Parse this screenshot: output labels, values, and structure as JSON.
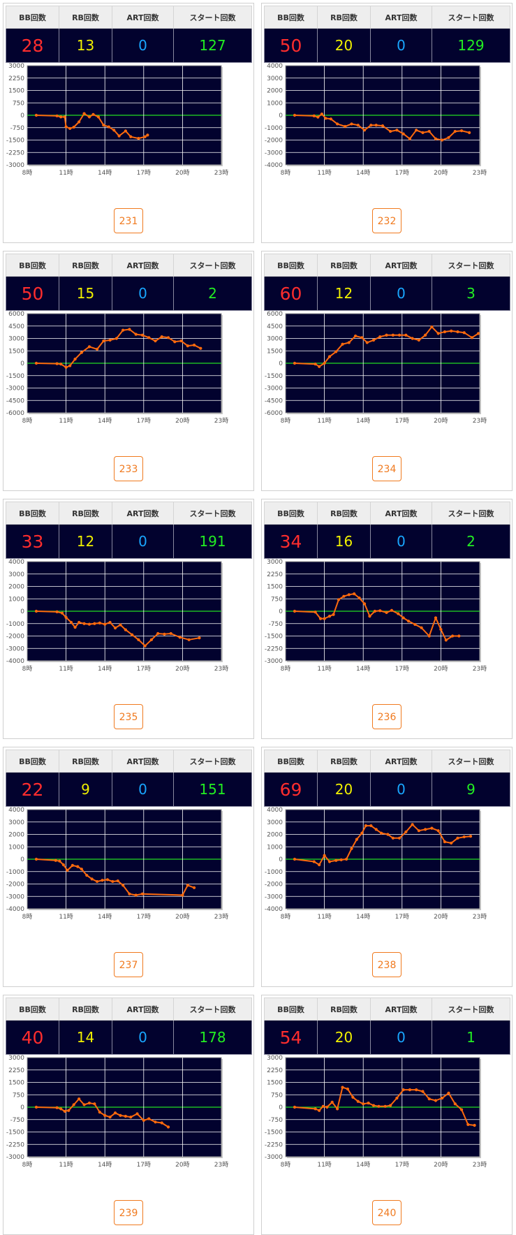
{
  "headers": {
    "bb": "BB回数",
    "rb": "RB回数",
    "art": "ART回数",
    "start": "スタート回数"
  },
  "colors": {
    "plot_bg": "#02022e",
    "line": "#ff6a0d",
    "zero_line": "#22dd22",
    "grid": "#ffffff",
    "bb": "#ff2d2d",
    "rb": "#f0f000",
    "art": "#19a6ff",
    "start": "#22ee22",
    "button": "#f07a1f"
  },
  "machines": [
    {
      "bb": "28",
      "rb": "13",
      "art": "0",
      "start": "127",
      "number": "231",
      "chart_data": {
        "type": "line",
        "xlim": [
          8,
          23
        ],
        "x_ticks": [
          "8時",
          "11時",
          "14時",
          "17時",
          "20時",
          "23時"
        ],
        "ylim": [
          -3000,
          3000
        ],
        "y_ticks": [
          "3000",
          "2250",
          "1500",
          "750",
          "0",
          "-750",
          "-1500",
          "-2250",
          "-3000"
        ],
        "series": [
          {
            "x": [
              8.7,
              10.3,
              10.6,
              10.9,
              11.0,
              11.3,
              11.6,
              12.0,
              12.4,
              12.8,
              13.1,
              13.5,
              13.9,
              14.3,
              14.7,
              15.1,
              15.6,
              16.0,
              16.6,
              17.1,
              17.3
            ],
            "y": [
              0,
              -40,
              -100,
              -100,
              -700,
              -800,
              -720,
              -400,
              100,
              -100,
              50,
              -100,
              -600,
              -700,
              -900,
              -1250,
              -950,
              -1300,
              -1400,
              -1300,
              -1200
            ]
          }
        ]
      }
    },
    {
      "bb": "50",
      "rb": "20",
      "art": "0",
      "start": "129",
      "number": "232",
      "chart_data": {
        "type": "line",
        "xlim": [
          8,
          23
        ],
        "x_ticks": [
          "8時",
          "11時",
          "14時",
          "17時",
          "20時",
          "23時"
        ],
        "ylim": [
          -4000,
          4000
        ],
        "y_ticks": [
          "4000",
          "3000",
          "2000",
          "1000",
          "0",
          "-1000",
          "-2000",
          "-3000",
          "-4000"
        ],
        "series": [
          {
            "x": [
              8.7,
              10.2,
              10.5,
              10.8,
              11.1,
              11.5,
              12.0,
              12.6,
              13.1,
              13.6,
              14.1,
              14.6,
              15.0,
              15.5,
              16.1,
              16.6,
              17.1,
              17.6,
              18.1,
              18.6,
              19.1,
              19.6,
              20.1,
              20.6,
              21.1,
              21.6,
              22.2
            ],
            "y": [
              0,
              -50,
              -150,
              100,
              -250,
              -300,
              -700,
              -900,
              -700,
              -800,
              -1200,
              -800,
              -800,
              -850,
              -1300,
              -1200,
              -1500,
              -1900,
              -1200,
              -1400,
              -1300,
              -1900,
              -2000,
              -1800,
              -1300,
              -1250,
              -1400
            ]
          }
        ]
      }
    },
    {
      "bb": "50",
      "rb": "15",
      "art": "0",
      "start": "2",
      "number": "233",
      "chart_data": {
        "type": "line",
        "xlim": [
          8,
          23
        ],
        "x_ticks": [
          "8時",
          "11時",
          "14時",
          "17時",
          "20時",
          "23時"
        ],
        "ylim": [
          -6000,
          6000
        ],
        "y_ticks": [
          "6000",
          "4500",
          "3000",
          "1500",
          "0",
          "-1500",
          "-3000",
          "-4500",
          "-6000"
        ],
        "series": [
          {
            "x": [
              8.7,
              10.3,
              10.6,
              11.0,
              11.3,
              11.7,
              12.2,
              12.8,
              13.4,
              13.9,
              14.4,
              14.9,
              15.4,
              15.9,
              16.4,
              16.9,
              17.4,
              17.9,
              18.4,
              18.9,
              19.4,
              19.9,
              20.4,
              20.9,
              21.4
            ],
            "y": [
              0,
              -50,
              -100,
              -500,
              -300,
              500,
              1300,
              2000,
              1700,
              2700,
              2800,
              3000,
              4000,
              4100,
              3500,
              3400,
              3100,
              2700,
              3200,
              3100,
              2600,
              2700,
              2100,
              2200,
              1800
            ]
          }
        ]
      }
    },
    {
      "bb": "60",
      "rb": "12",
      "art": "0",
      "start": "3",
      "number": "234",
      "chart_data": {
        "type": "line",
        "xlim": [
          8,
          23
        ],
        "x_ticks": [
          "8時",
          "11時",
          "14時",
          "17時",
          "20時",
          "23時"
        ],
        "ylim": [
          -6000,
          6000
        ],
        "y_ticks": [
          "6000",
          "4500",
          "3000",
          "1500",
          "0",
          "-1500",
          "-3000",
          "-4500",
          "-6000"
        ],
        "series": [
          {
            "x": [
              8.7,
              10.3,
              10.6,
              11.0,
              11.4,
              11.9,
              12.4,
              12.9,
              13.4,
              13.9,
              14.3,
              14.8,
              15.3,
              15.8,
              16.3,
              16.8,
              17.3,
              17.8,
              18.3,
              18.8,
              19.3,
              19.8,
              20.3,
              20.8,
              21.3,
              21.8,
              22.4,
              22.9
            ],
            "y": [
              0,
              -100,
              -400,
              0,
              800,
              1400,
              2300,
              2500,
              3300,
              3100,
              2500,
              2800,
              3200,
              3400,
              3400,
              3400,
              3400,
              3000,
              2800,
              3400,
              4400,
              3600,
              3800,
              3900,
              3800,
              3700,
              3100,
              3600
            ]
          }
        ]
      }
    },
    {
      "bb": "33",
      "rb": "12",
      "art": "0",
      "start": "191",
      "number": "235",
      "chart_data": {
        "type": "line",
        "xlim": [
          8,
          23
        ],
        "x_ticks": [
          "8時",
          "11時",
          "14時",
          "17時",
          "20時",
          "23時"
        ],
        "ylim": [
          -4000,
          4000
        ],
        "y_ticks": [
          "4000",
          "3000",
          "2000",
          "1000",
          "0",
          "-1000",
          "-2000",
          "-3000",
          "-4000"
        ],
        "series": [
          {
            "x": [
              8.7,
              10.3,
              10.7,
              11.0,
              11.4,
              11.7,
              12.0,
              12.4,
              12.8,
              13.2,
              13.6,
              14.0,
              14.4,
              14.8,
              15.2,
              15.6,
              16.1,
              16.6,
              17.1,
              17.6,
              18.1,
              18.6,
              19.1,
              19.8,
              20.5,
              21.3
            ],
            "y": [
              0,
              -50,
              -150,
              -500,
              -900,
              -1300,
              -900,
              -1000,
              -1050,
              -1000,
              -950,
              -1050,
              -900,
              -1350,
              -1100,
              -1500,
              -1900,
              -2300,
              -2800,
              -2300,
              -1800,
              -1850,
              -1800,
              -2100,
              -2300,
              -2150
            ]
          }
        ]
      }
    },
    {
      "bb": "34",
      "rb": "16",
      "art": "0",
      "start": "2",
      "number": "236",
      "chart_data": {
        "type": "line",
        "xlim": [
          8,
          23
        ],
        "x_ticks": [
          "8時",
          "11時",
          "14時",
          "17時",
          "20時",
          "23時"
        ],
        "ylim": [
          -3000,
          3000
        ],
        "y_ticks": [
          "3000",
          "2250",
          "1500",
          "750",
          "0",
          "-750",
          "-1500",
          "-2250",
          "-3000"
        ],
        "series": [
          {
            "x": [
              8.7,
              10.3,
              10.7,
              11.0,
              11.4,
              11.7,
              12.1,
              12.5,
              12.9,
              13.3,
              13.7,
              14.1,
              14.5,
              14.9,
              15.3,
              15.8,
              16.2,
              16.7,
              17.1,
              17.5,
              18.0,
              18.5,
              19.1,
              19.6,
              20.0,
              20.4,
              20.9,
              21.4
            ],
            "y": [
              0,
              -50,
              -450,
              -450,
              -300,
              -200,
              700,
              900,
              1000,
              1050,
              800,
              450,
              -300,
              0,
              30,
              -80,
              50,
              -150,
              -400,
              -600,
              -800,
              -1000,
              -1500,
              -400,
              -1100,
              -1750,
              -1500,
              -1500
            ]
          }
        ]
      }
    },
    {
      "bb": "22",
      "rb": "9",
      "art": "0",
      "start": "151",
      "number": "237",
      "chart_data": {
        "type": "line",
        "xlim": [
          8,
          23
        ],
        "x_ticks": [
          "8時",
          "11時",
          "14時",
          "17時",
          "20時",
          "23時"
        ],
        "ylim": [
          -4000,
          4000
        ],
        "y_ticks": [
          "4000",
          "3000",
          "2000",
          "1000",
          "0",
          "-1000",
          "-2000",
          "-3000",
          "-4000"
        ],
        "series": [
          {
            "x": [
              8.7,
              10.2,
              10.5,
              10.8,
              11.1,
              11.5,
              11.9,
              12.2,
              12.6,
              13.0,
              13.4,
              13.8,
              14.2,
              14.6,
              15.0,
              15.4,
              15.9,
              16.4,
              16.9,
              20.0,
              20.4,
              20.9
            ],
            "y": [
              0,
              -100,
              -150,
              -450,
              -900,
              -500,
              -600,
              -800,
              -1300,
              -1600,
              -1800,
              -1700,
              -1650,
              -1800,
              -1750,
              -2100,
              -2800,
              -2900,
              -2800,
              -2900,
              -2100,
              -2300
            ]
          }
        ]
      }
    },
    {
      "bb": "69",
      "rb": "20",
      "art": "0",
      "start": "9",
      "number": "238",
      "chart_data": {
        "type": "line",
        "xlim": [
          8,
          23
        ],
        "x_ticks": [
          "8時",
          "11時",
          "14時",
          "17時",
          "20時",
          "23時"
        ],
        "ylim": [
          -4000,
          4000
        ],
        "y_ticks": [
          "4000",
          "3000",
          "2000",
          "1000",
          "0",
          "-1000",
          "-2000",
          "-3000",
          "-4000"
        ],
        "series": [
          {
            "x": [
              8.7,
              10.2,
              10.6,
              11.0,
              11.4,
              11.9,
              12.3,
              12.7,
              13.1,
              13.5,
              13.9,
              14.2,
              14.6,
              15.0,
              15.4,
              15.9,
              16.3,
              16.8,
              17.3,
              17.8,
              18.3,
              18.8,
              19.3,
              19.8,
              20.3,
              20.8,
              21.3,
              21.8,
              22.3
            ],
            "y": [
              0,
              -200,
              -450,
              300,
              -200,
              -100,
              -50,
              0,
              850,
              1600,
              2100,
              2700,
              2700,
              2400,
              2100,
              2000,
              1700,
              1700,
              2200,
              2800,
              2300,
              2400,
              2500,
              2300,
              1400,
              1300,
              1700,
              1800,
              1850
            ]
          }
        ]
      }
    },
    {
      "bb": "40",
      "rb": "14",
      "art": "0",
      "start": "178",
      "number": "239",
      "chart_data": {
        "type": "line",
        "xlim": [
          8,
          23
        ],
        "x_ticks": [
          "8時",
          "11時",
          "14時",
          "17時",
          "20時",
          "23時"
        ],
        "ylim": [
          -3000,
          3000
        ],
        "y_ticks": [
          "3000",
          "2250",
          "1500",
          "750",
          "0",
          "-750",
          "-1500",
          "-2250",
          "-3000"
        ],
        "series": [
          {
            "x": [
              8.7,
              10.3,
              10.6,
              10.9,
              11.2,
              11.6,
              12.0,
              12.4,
              12.8,
              13.2,
              13.6,
              14.0,
              14.4,
              14.8,
              15.2,
              15.6,
              16.0,
              16.5,
              17.0,
              17.4,
              17.9,
              18.4,
              18.9
            ],
            "y": [
              0,
              -30,
              -100,
              -250,
              -200,
              150,
              500,
              150,
              250,
              200,
              -300,
              -500,
              -600,
              -350,
              -500,
              -550,
              -600,
              -400,
              -800,
              -700,
              -900,
              -950,
              -1200
            ]
          }
        ]
      }
    },
    {
      "bb": "54",
      "rb": "20",
      "art": "0",
      "start": "1",
      "number": "240",
      "chart_data": {
        "type": "line",
        "xlim": [
          8,
          23
        ],
        "x_ticks": [
          "8時",
          "11時",
          "14時",
          "17時",
          "20時",
          "23時"
        ],
        "ylim": [
          -3000,
          3000
        ],
        "y_ticks": [
          "3000",
          "2250",
          "1500",
          "750",
          "0",
          "-750",
          "-1500",
          "-2250",
          "-3000"
        ],
        "series": [
          {
            "x": [
              8.7,
              10.3,
              10.6,
              10.9,
              11.2,
              11.6,
              12.0,
              12.4,
              12.8,
              13.2,
              13.6,
              14.0,
              14.4,
              14.8,
              15.2,
              15.7,
              16.1,
              16.6,
              17.1,
              17.6,
              18.1,
              18.6,
              19.1,
              19.6,
              20.1,
              20.6,
              21.1,
              21.6,
              22.1,
              22.6
            ],
            "y": [
              0,
              -100,
              -200,
              50,
              0,
              300,
              -100,
              1200,
              1100,
              600,
              350,
              200,
              250,
              100,
              50,
              50,
              100,
              550,
              1050,
              1050,
              1050,
              950,
              500,
              400,
              550,
              850,
              200,
              -150,
              -1050,
              -1100
            ]
          }
        ]
      }
    }
  ]
}
